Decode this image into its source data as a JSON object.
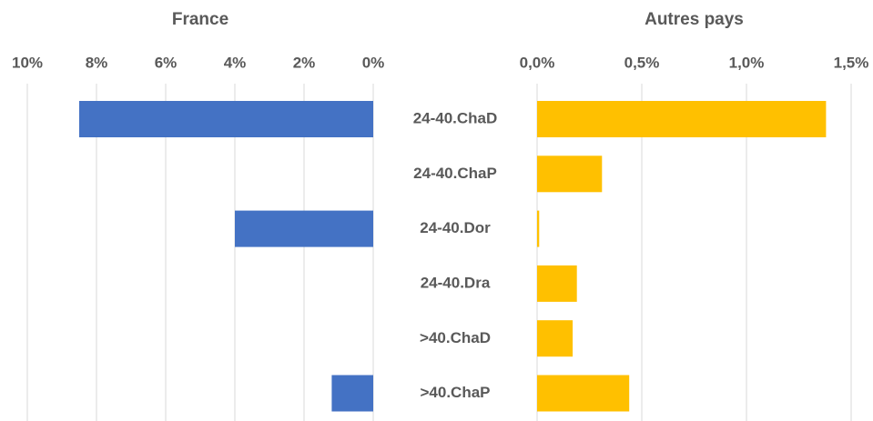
{
  "chart_data": [
    {
      "type": "bar",
      "orientation": "horizontal",
      "reversed": true,
      "title": "France",
      "categories": [
        "24-40.ChaD",
        "24-40.ChaP",
        "24-40.Dor",
        "24-40.Dra",
        ">40.ChaD",
        ">40.ChaP"
      ],
      "values": [
        8.5,
        0,
        4.0,
        0,
        0,
        1.2
      ],
      "color": "#4472c4",
      "xlim": [
        0,
        10
      ],
      "xticks": [
        {
          "value": 0,
          "label": "0%"
        },
        {
          "value": 2,
          "label": "2%"
        },
        {
          "value": 4,
          "label": "4%"
        },
        {
          "value": 6,
          "label": "6%"
        },
        {
          "value": 8,
          "label": "8%"
        },
        {
          "value": 10,
          "label": "10%"
        }
      ],
      "grid": true
    },
    {
      "type": "bar",
      "orientation": "horizontal",
      "reversed": false,
      "title": "Autres pays",
      "values": [
        1.38,
        0.31,
        0.01,
        0.19,
        0.17,
        0.44
      ],
      "color": "#ffc000",
      "xlim": [
        0,
        1.5
      ],
      "xticks": [
        {
          "value": 0,
          "label": "0,0%"
        },
        {
          "value": 0.5,
          "label": "0,5%"
        },
        {
          "value": 1.0,
          "label": "1,0%"
        },
        {
          "value": 1.5,
          "label": "1,5%"
        }
      ],
      "grid": true
    }
  ]
}
